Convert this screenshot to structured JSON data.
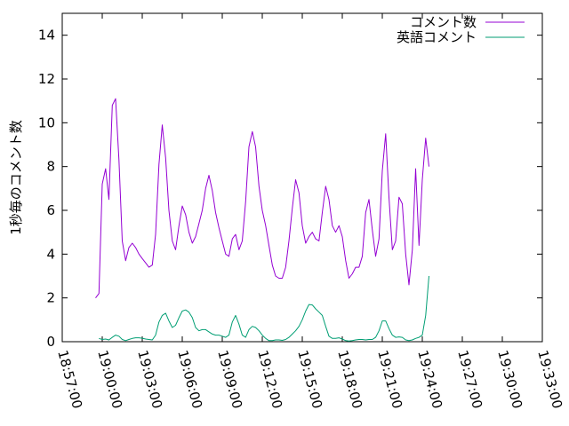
{
  "chart_data": {
    "type": "line",
    "ylabel": "1秒毎のコメント数",
    "ylim": [
      0,
      15
    ],
    "yticks": [
      0,
      2,
      4,
      6,
      8,
      10,
      12,
      14
    ],
    "xlim": [
      "18:57:00",
      "19:33:00"
    ],
    "xticks": [
      "18:57:00",
      "19:00:00",
      "19:03:00",
      "19:06:00",
      "19:09:00",
      "19:12:00",
      "19:15:00",
      "19:18:00",
      "19:21:00",
      "19:24:00",
      "19:27:00",
      "19:30:00",
      "19:33:00"
    ],
    "grid": false,
    "legend": "top-right",
    "series": [
      {
        "name": "コメント数",
        "color": "#9400d3",
        "points": [
          [
            "18:59:30",
            2.0
          ],
          [
            "18:59:45",
            2.2
          ],
          [
            "19:00:00",
            7.2
          ],
          [
            "19:00:15",
            7.9
          ],
          [
            "19:00:30",
            6.5
          ],
          [
            "19:00:45",
            10.8
          ],
          [
            "19:01:00",
            11.1
          ],
          [
            "19:01:15",
            8.3
          ],
          [
            "19:01:30",
            4.6
          ],
          [
            "19:01:45",
            3.7
          ],
          [
            "19:02:00",
            4.3
          ],
          [
            "19:02:15",
            4.5
          ],
          [
            "19:02:30",
            4.3
          ],
          [
            "19:02:45",
            4.0
          ],
          [
            "19:03:00",
            3.8
          ],
          [
            "19:03:15",
            3.6
          ],
          [
            "19:03:30",
            3.4
          ],
          [
            "19:03:45",
            3.5
          ],
          [
            "19:04:00",
            4.9
          ],
          [
            "19:04:15",
            8.1
          ],
          [
            "19:04:30",
            9.9
          ],
          [
            "19:04:45",
            8.4
          ],
          [
            "19:05:00",
            6.0
          ],
          [
            "19:05:15",
            4.6
          ],
          [
            "19:05:30",
            4.2
          ],
          [
            "19:05:45",
            5.3
          ],
          [
            "19:06:00",
            6.2
          ],
          [
            "19:06:15",
            5.8
          ],
          [
            "19:06:30",
            5.0
          ],
          [
            "19:06:45",
            4.5
          ],
          [
            "19:07:00",
            4.8
          ],
          [
            "19:07:15",
            5.4
          ],
          [
            "19:07:30",
            6.0
          ],
          [
            "19:07:45",
            7.0
          ],
          [
            "19:08:00",
            7.6
          ],
          [
            "19:08:15",
            6.9
          ],
          [
            "19:08:30",
            5.9
          ],
          [
            "19:08:45",
            5.2
          ],
          [
            "19:09:00",
            4.6
          ],
          [
            "19:09:15",
            4.0
          ],
          [
            "19:09:30",
            3.9
          ],
          [
            "19:09:45",
            4.7
          ],
          [
            "19:10:00",
            4.9
          ],
          [
            "19:10:15",
            4.2
          ],
          [
            "19:10:30",
            4.6
          ],
          [
            "19:10:45",
            6.4
          ],
          [
            "19:11:00",
            8.9
          ],
          [
            "19:11:15",
            9.6
          ],
          [
            "19:11:30",
            8.9
          ],
          [
            "19:11:45",
            7.1
          ],
          [
            "19:12:00",
            6.0
          ],
          [
            "19:12:15",
            5.3
          ],
          [
            "19:12:30",
            4.4
          ],
          [
            "19:12:45",
            3.5
          ],
          [
            "19:13:00",
            3.0
          ],
          [
            "19:13:15",
            2.9
          ],
          [
            "19:13:30",
            2.9
          ],
          [
            "19:13:45",
            3.4
          ],
          [
            "19:14:00",
            4.6
          ],
          [
            "19:14:15",
            6.1
          ],
          [
            "19:14:30",
            7.4
          ],
          [
            "19:14:45",
            6.8
          ],
          [
            "19:15:00",
            5.3
          ],
          [
            "19:15:15",
            4.5
          ],
          [
            "19:15:30",
            4.8
          ],
          [
            "19:15:45",
            5.0
          ],
          [
            "19:16:00",
            4.7
          ],
          [
            "19:16:15",
            4.6
          ],
          [
            "19:16:30",
            5.9
          ],
          [
            "19:16:45",
            7.1
          ],
          [
            "19:17:00",
            6.5
          ],
          [
            "19:17:15",
            5.3
          ],
          [
            "19:17:30",
            5.0
          ],
          [
            "19:17:45",
            5.3
          ],
          [
            "19:18:00",
            4.8
          ],
          [
            "19:18:15",
            3.7
          ],
          [
            "19:18:30",
            2.9
          ],
          [
            "19:18:45",
            3.1
          ],
          [
            "19:19:00",
            3.4
          ],
          [
            "19:19:15",
            3.4
          ],
          [
            "19:19:30",
            3.9
          ],
          [
            "19:19:45",
            5.9
          ],
          [
            "19:20:00",
            6.5
          ],
          [
            "19:20:15",
            5.1
          ],
          [
            "19:20:30",
            3.9
          ],
          [
            "19:20:45",
            4.7
          ],
          [
            "19:21:00",
            7.8
          ],
          [
            "19:21:15",
            9.5
          ],
          [
            "19:21:30",
            6.6
          ],
          [
            "19:21:45",
            4.2
          ],
          [
            "19:22:00",
            4.6
          ],
          [
            "19:22:15",
            6.6
          ],
          [
            "19:22:30",
            6.3
          ],
          [
            "19:22:45",
            4.0
          ],
          [
            "19:23:00",
            2.6
          ],
          [
            "19:23:15",
            4.2
          ],
          [
            "19:23:30",
            7.9
          ],
          [
            "19:23:45",
            4.4
          ],
          [
            "19:24:00",
            7.4
          ],
          [
            "19:24:15",
            9.3
          ],
          [
            "19:24:30",
            8.0
          ]
        ]
      },
      {
        "name": "英語コメント",
        "color": "#009e73",
        "points": [
          [
            "18:59:45",
            0.15
          ],
          [
            "19:00:00",
            0.1
          ],
          [
            "19:00:15",
            0.12
          ],
          [
            "19:00:30",
            0.08
          ],
          [
            "19:00:45",
            0.2
          ],
          [
            "19:01:00",
            0.3
          ],
          [
            "19:01:15",
            0.25
          ],
          [
            "19:01:30",
            0.1
          ],
          [
            "19:01:45",
            0.05
          ],
          [
            "19:02:00",
            0.1
          ],
          [
            "19:02:15",
            0.15
          ],
          [
            "19:02:30",
            0.18
          ],
          [
            "19:02:45",
            0.18
          ],
          [
            "19:03:00",
            0.16
          ],
          [
            "19:03:15",
            0.12
          ],
          [
            "19:03:30",
            0.1
          ],
          [
            "19:03:45",
            0.08
          ],
          [
            "19:04:00",
            0.3
          ],
          [
            "19:04:15",
            0.9
          ],
          [
            "19:04:30",
            1.2
          ],
          [
            "19:04:45",
            1.3
          ],
          [
            "19:05:00",
            0.95
          ],
          [
            "19:05:15",
            0.65
          ],
          [
            "19:05:30",
            0.75
          ],
          [
            "19:05:45",
            1.1
          ],
          [
            "19:06:00",
            1.4
          ],
          [
            "19:06:15",
            1.45
          ],
          [
            "19:06:30",
            1.35
          ],
          [
            "19:06:45",
            1.1
          ],
          [
            "19:07:00",
            0.65
          ],
          [
            "19:07:15",
            0.5
          ],
          [
            "19:07:30",
            0.55
          ],
          [
            "19:07:45",
            0.55
          ],
          [
            "19:08:00",
            0.45
          ],
          [
            "19:08:15",
            0.35
          ],
          [
            "19:08:30",
            0.3
          ],
          [
            "19:08:45",
            0.3
          ],
          [
            "19:09:00",
            0.25
          ],
          [
            "19:09:15",
            0.2
          ],
          [
            "19:09:30",
            0.3
          ],
          [
            "19:09:45",
            0.9
          ],
          [
            "19:10:00",
            1.2
          ],
          [
            "19:10:15",
            0.8
          ],
          [
            "19:10:30",
            0.3
          ],
          [
            "19:10:45",
            0.2
          ],
          [
            "19:11:00",
            0.55
          ],
          [
            "19:11:15",
            0.7
          ],
          [
            "19:11:30",
            0.65
          ],
          [
            "19:11:45",
            0.5
          ],
          [
            "19:12:00",
            0.3
          ],
          [
            "19:12:15",
            0.15
          ],
          [
            "19:12:30",
            0.05
          ],
          [
            "19:12:45",
            0.05
          ],
          [
            "19:13:00",
            0.08
          ],
          [
            "19:13:15",
            0.08
          ],
          [
            "19:13:30",
            0.06
          ],
          [
            "19:13:45",
            0.1
          ],
          [
            "19:14:00",
            0.2
          ],
          [
            "19:14:15",
            0.35
          ],
          [
            "19:14:30",
            0.5
          ],
          [
            "19:14:45",
            0.7
          ],
          [
            "19:15:00",
            1.0
          ],
          [
            "19:15:15",
            1.4
          ],
          [
            "19:15:30",
            1.7
          ],
          [
            "19:15:45",
            1.68
          ],
          [
            "19:16:00",
            1.5
          ],
          [
            "19:16:15",
            1.35
          ],
          [
            "19:16:30",
            1.2
          ],
          [
            "19:16:45",
            0.7
          ],
          [
            "19:17:00",
            0.25
          ],
          [
            "19:17:15",
            0.15
          ],
          [
            "19:17:30",
            0.15
          ],
          [
            "19:17:45",
            0.18
          ],
          [
            "19:18:00",
            0.12
          ],
          [
            "19:18:15",
            0.05
          ],
          [
            "19:18:30",
            0.03
          ],
          [
            "19:18:45",
            0.05
          ],
          [
            "19:19:00",
            0.08
          ],
          [
            "19:19:15",
            0.1
          ],
          [
            "19:19:30",
            0.1
          ],
          [
            "19:19:45",
            0.08
          ],
          [
            "19:20:00",
            0.1
          ],
          [
            "19:20:15",
            0.1
          ],
          [
            "19:20:30",
            0.2
          ],
          [
            "19:20:45",
            0.5
          ],
          [
            "19:21:00",
            0.95
          ],
          [
            "19:21:15",
            0.95
          ],
          [
            "19:21:30",
            0.6
          ],
          [
            "19:21:45",
            0.3
          ],
          [
            "19:22:00",
            0.2
          ],
          [
            "19:22:15",
            0.22
          ],
          [
            "19:22:30",
            0.2
          ],
          [
            "19:22:45",
            0.08
          ],
          [
            "19:23:00",
            0.05
          ],
          [
            "19:23:15",
            0.08
          ],
          [
            "19:23:30",
            0.15
          ],
          [
            "19:23:45",
            0.2
          ],
          [
            "19:24:00",
            0.3
          ],
          [
            "19:24:15",
            1.2
          ],
          [
            "19:24:30",
            3.0
          ]
        ]
      }
    ]
  }
}
